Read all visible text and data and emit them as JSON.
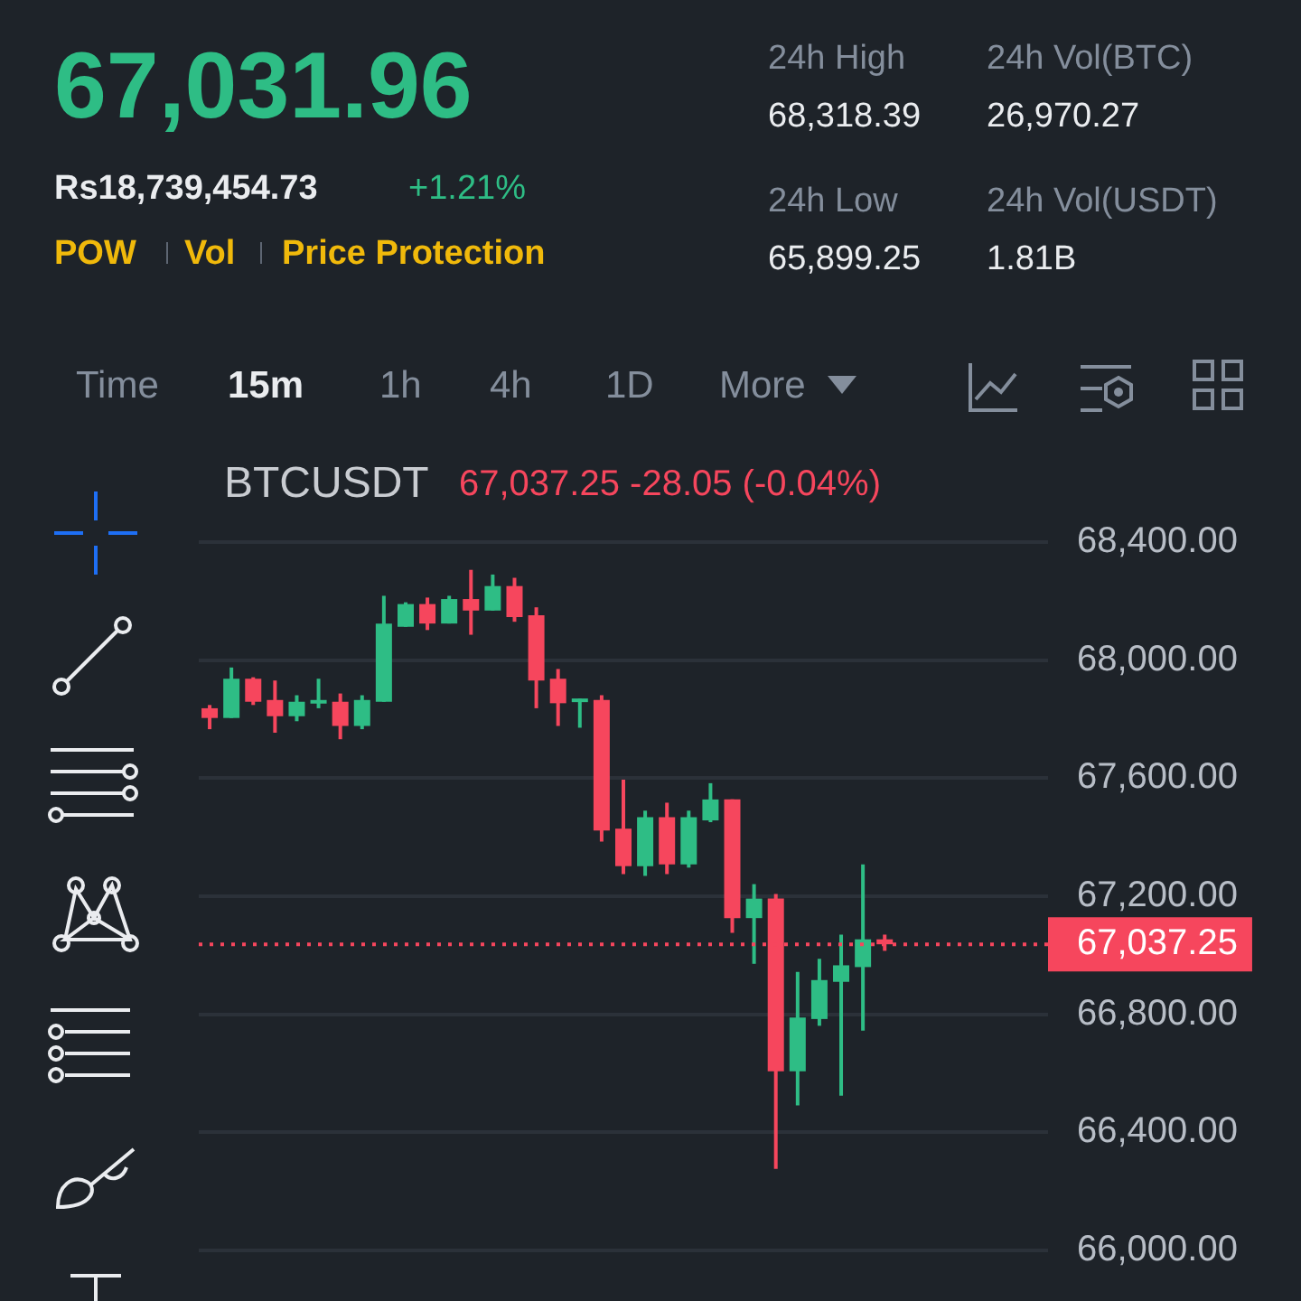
{
  "chart_data": {
    "type": "candlestick",
    "title": "BTCUSDT",
    "subtitle": "67,037.25 -28.05 (-0.04%)",
    "annotations": [
      "67,031.96",
      "Rs18,739,454.73",
      "+1.21%",
      "POW",
      "Vol",
      "Price Protection",
      "24h High",
      "68,318.39",
      "24h Vol(BTC)",
      "26,970.27",
      "24h Low",
      "65,899.25",
      "24h Vol(USDT)",
      "1.81B",
      "Time",
      "15m",
      "1h",
      "4h",
      "1D",
      "More"
    ],
    "categories": [
      null,
      null,
      null,
      null,
      null,
      null,
      null,
      null,
      null,
      null,
      null,
      null,
      null,
      null,
      null,
      null,
      null,
      null,
      null,
      null,
      null,
      null,
      null,
      null,
      null,
      null,
      null,
      null,
      null,
      null,
      null,
      null,
      null,
      null,
      null,
      null,
      null,
      null,
      null
    ],
    "ohlc": [
      [
        67837,
        67848,
        67766,
        67804
      ],
      [
        67804,
        67975,
        67804,
        67937
      ],
      [
        67937,
        67942,
        67848,
        67859
      ],
      [
        67865,
        67931,
        67754,
        67810
      ],
      [
        67810,
        67881,
        67793,
        67859
      ],
      [
        67854,
        67937,
        67837,
        67865
      ],
      [
        67859,
        67887,
        67732,
        67777
      ],
      [
        67777,
        67881,
        67766,
        67865
      ],
      [
        67859,
        68218,
        67859,
        68124
      ],
      [
        68113,
        68196,
        68113,
        68190
      ],
      [
        68190,
        68212,
        68102,
        68124
      ],
      [
        68124,
        68218,
        68124,
        68207
      ],
      [
        68207,
        68306,
        68086,
        68168
      ],
      [
        68168,
        68290,
        68168,
        68251
      ],
      [
        68251,
        68279,
        68130,
        68146
      ],
      [
        68152,
        68179,
        67837,
        67931
      ],
      [
        67937,
        67970,
        67777,
        67854
      ],
      [
        67865,
        67870,
        67771,
        67870
      ],
      [
        67865,
        67881,
        67385,
        67423
      ],
      [
        67429,
        67595,
        67275,
        67302
      ],
      [
        67302,
        67490,
        67269,
        67468
      ],
      [
        67468,
        67517,
        67275,
        67308
      ],
      [
        67308,
        67490,
        67297,
        67468
      ],
      [
        67457,
        67583,
        67451,
        67528
      ],
      [
        67528,
        67528,
        67076,
        67126
      ],
      [
        67126,
        67241,
        66971,
        67192
      ],
      [
        67192,
        67208,
        66276,
        66607
      ],
      [
        66607,
        66944,
        66491,
        66789
      ],
      [
        66784,
        66988,
        66761,
        66916
      ],
      [
        66910,
        67070,
        66524,
        66966
      ],
      [
        66960,
        67308,
        66745,
        67054
      ],
      [
        67054,
        67070,
        67015,
        67037.25
      ],
      null,
      null,
      null,
      null,
      null,
      null,
      null
    ],
    "colors": [
      "#f6465d",
      "#2ebd85",
      "#f6465d",
      "#f6465d",
      "#2ebd85",
      "#2ebd85",
      "#f6465d",
      "#2ebd85",
      "#2ebd85",
      "#2ebd85",
      "#f6465d",
      "#2ebd85",
      "#f6465d",
      "#2ebd85",
      "#f6465d",
      "#f6465d",
      "#f6465d",
      "#2ebd85",
      "#f6465d",
      "#f6465d",
      "#2ebd85",
      "#f6465d",
      "#2ebd85",
      "#2ebd85",
      "#f6465d",
      "#2ebd85",
      "#f6465d",
      "#2ebd85",
      "#2ebd85",
      "#2ebd85",
      "#2ebd85",
      "#f6465d",
      null,
      null,
      null,
      null,
      null,
      null,
      null
    ],
    "ylim": [
      66000,
      68400
    ],
    "yticks": [
      {
        "value": 66000,
        "label": "66,000.00"
      },
      {
        "value": 66400,
        "label": "66,400.00"
      },
      {
        "value": 66800,
        "label": "66,800.00"
      },
      {
        "value": 67200,
        "label": "67,200.00"
      },
      {
        "value": 67600,
        "label": "67,600.00"
      },
      {
        "value": 68000,
        "label": "68,000.00"
      },
      {
        "value": 68400,
        "label": "68,400.00"
      }
    ],
    "grid": "y",
    "tick_labels": "y",
    "ref_lines": [
      {
        "axis": "y",
        "value": 67037.25,
        "label": "67,037.25",
        "color": "#f6465d",
        "line_style": "dotted"
      }
    ]
  }
}
